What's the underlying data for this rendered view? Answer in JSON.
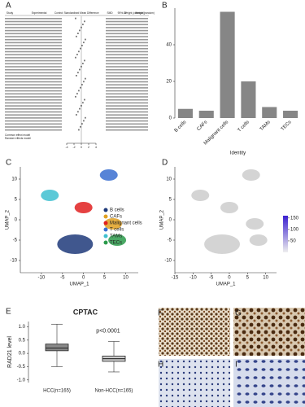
{
  "panel_labels": [
    "A",
    "B",
    "C",
    "D",
    "E",
    "F",
    "G",
    "H",
    "I"
  ],
  "panel_a": {
    "headers": [
      "Study",
      "Experimental",
      "Control",
      "Standardised Mean Difference",
      "SMD",
      "95%-CI",
      "Weight (common)",
      "Weight (random)"
    ],
    "footer": [
      "Common effect model",
      "Random effects model"
    ],
    "xticks": [
      -4,
      -2,
      0,
      2,
      4
    ]
  },
  "chart_data": [
    {
      "type": "strip",
      "xlabel": "Identity",
      "categories": [
        "B cells",
        "CAFs",
        "Malignant cells",
        "T cells",
        "TAMs",
        "TECs"
      ],
      "values": [
        5,
        4,
        58,
        20,
        6,
        4
      ],
      "color": "#222222",
      "ylim": [
        0,
        60
      ],
      "yticks": [
        0,
        20,
        40
      ]
    },
    {
      "type": "umap",
      "xlabel": "UMAP_1",
      "ylabel": "UMAP_2",
      "xlim": [
        -15,
        13
      ],
      "ylim": [
        -13,
        13
      ],
      "xticks": [
        -10,
        -5,
        0,
        5,
        10
      ],
      "yticks": [
        -10,
        -5,
        0,
        5,
        10
      ],
      "series": [
        {
          "name": "B cells",
          "color": "#1f3a7a",
          "x": -2,
          "y": -6
        },
        {
          "name": "CAFs",
          "color": "#e0a020",
          "x": 7,
          "y": -1
        },
        {
          "name": "Malignant cells",
          "color": "#e02020",
          "x": 0,
          "y": 3
        },
        {
          "name": "T cells",
          "color": "#3a6fd0",
          "x": 6,
          "y": 11
        },
        {
          "name": "TAMs",
          "color": "#40c0d0",
          "x": -8,
          "y": 6
        },
        {
          "name": "TECs",
          "color": "#2a9a4a",
          "x": 8,
          "y": -5
        }
      ]
    },
    {
      "type": "feature",
      "xlabel": "UMAP_1",
      "ylabel": "UMAP_2",
      "xlim": [
        -15,
        13
      ],
      "ylim": [
        -13,
        13
      ],
      "xticks": [
        -15,
        -10,
        -5,
        0,
        5,
        10
      ],
      "yticks": [
        -10,
        -5,
        0,
        5,
        10
      ],
      "colorbar_lim": [
        0,
        160
      ],
      "colorbar_ticks": [
        50,
        100,
        150
      ]
    },
    {
      "type": "box",
      "title": "CPTAC",
      "ylabel": "RAD21 level",
      "annotation": "p<0.0001",
      "categories": [
        "HCC(n=165)",
        "Non-HCC(n=165)"
      ],
      "ylim": [
        -1.1,
        1.2
      ],
      "yticks": [
        {
          "value": -1,
          "label": "-1.0"
        },
        -0.5,
        {
          "value": 0,
          "label": "0.0"
        },
        0.5,
        {
          "value": 1,
          "label": "1.0"
        }
      ],
      "boxes": [
        {
          "min": -0.5,
          "q1": 0.1,
          "median": 0.2,
          "q3": 0.35,
          "max": 1.1,
          "color": "#888888"
        },
        {
          "min": -0.7,
          "q1": -0.3,
          "median": -0.2,
          "q3": -0.1,
          "max": 0.45,
          "color": "#cccccc"
        }
      ]
    }
  ]
}
